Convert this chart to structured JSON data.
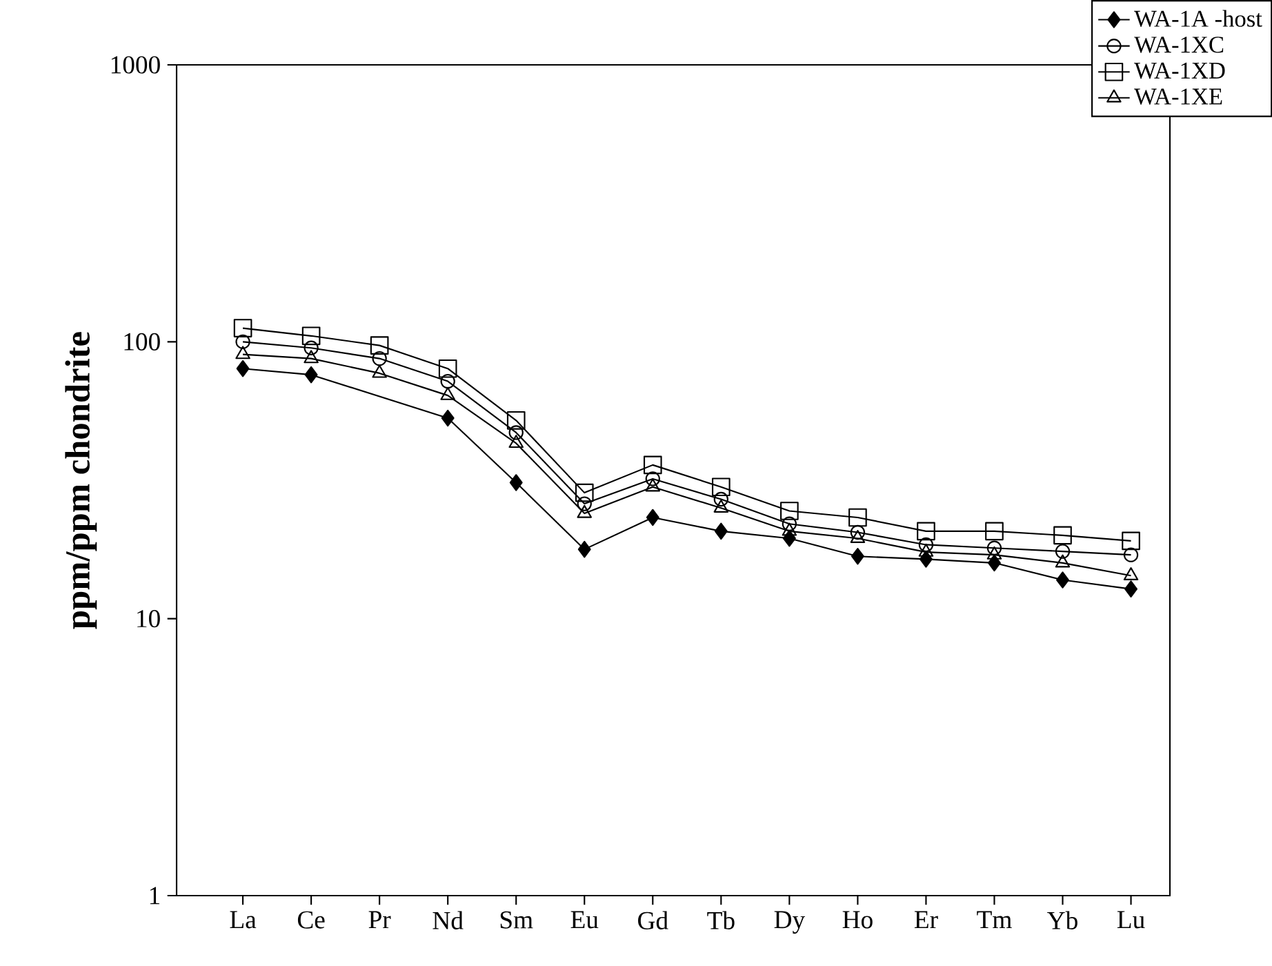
{
  "chart_data": {
    "type": "line",
    "ylabel": "ppm/ppm chondrite",
    "categories": [
      "La",
      "Ce",
      "Pr",
      "Nd",
      "Sm",
      "Eu",
      "Gd",
      "Tb",
      "Dy",
      "Ho",
      "Er",
      "Tm",
      "Yb",
      "Lu"
    ],
    "series": [
      {
        "name": "WA-1A -host",
        "color": "#000000",
        "marker": "diamond",
        "values": [
          80,
          76,
          null,
          53,
          31,
          17.8,
          23.2,
          20.7,
          19.5,
          16.8,
          16.4,
          15.9,
          13.8,
          12.8
        ]
      },
      {
        "name": "WA-1XC",
        "color": "#000000",
        "marker": "circle",
        "values": [
          100,
          95,
          87,
          72,
          47,
          26,
          32,
          27,
          22,
          20.5,
          18.5,
          18,
          17.5,
          17
        ]
      },
      {
        "name": "WA-1XD",
        "color": "#000000",
        "marker": "square",
        "values": [
          112,
          105,
          97,
          80,
          52,
          28.5,
          35.9,
          29.9,
          24.5,
          23.2,
          20.7,
          20.7,
          20,
          19.1
        ]
      },
      {
        "name": "WA-1XE",
        "color": "#000000",
        "marker": "triangle",
        "values": [
          90,
          87,
          77,
          64,
          43,
          24,
          29.9,
          25.1,
          20.7,
          19.5,
          17.4,
          17,
          15.9,
          14.3
        ]
      }
    ],
    "log": "y",
    "ylim": [
      1,
      1000
    ],
    "yticks": [
      1,
      10,
      100,
      1000
    ],
    "legend": "top right",
    "line_style": "solid"
  }
}
